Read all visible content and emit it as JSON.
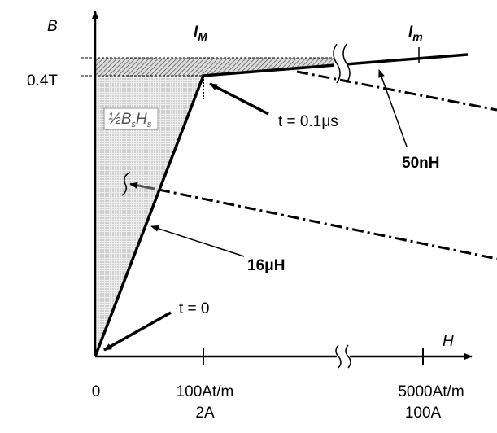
{
  "axes": {
    "y_label": "B",
    "x_label": "H"
  },
  "top_labels": [
    {
      "symbol": "I",
      "subscript": "M"
    },
    {
      "symbol": "I",
      "subscript": "m"
    }
  ],
  "y_tick": "0.4T",
  "area_label": {
    "prefix": "½B",
    "s1": "s",
    "mid": "H",
    "s2": "s"
  },
  "annotations": [
    "t = 0.1μs",
    "50nH",
    "16μH",
    "t = 0"
  ],
  "x_ticks": [
    {
      "label": "0"
    },
    {
      "label": "100At/m",
      "sub": "2A"
    },
    {
      "label": "5000At/m",
      "sub": "100A"
    }
  ]
}
